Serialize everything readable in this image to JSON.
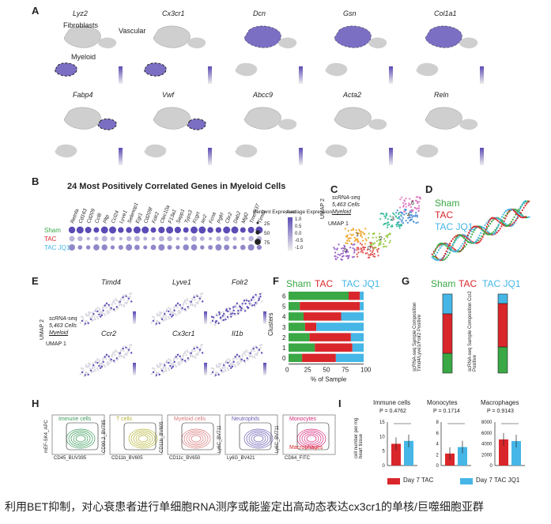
{
  "panelA": {
    "letter": "A",
    "genes": [
      "Lyz2",
      "Cx3cr1",
      "Dcn",
      "Gsn",
      "Col1a1",
      "Fabp4",
      "Vwf",
      "Abcc9",
      "Acta2",
      "Reln"
    ],
    "labels": {
      "fibroblasts": "Fibroblasts",
      "vascular": "Vascular",
      "myeloid": "Myeloid"
    }
  },
  "panelB": {
    "letter": "B",
    "title": "24 Most Positively Correlated Genes in Myeloid Cells",
    "genes": [
      "Retnla",
      "Cd163",
      "Cd209",
      "Ccl8",
      "Pltp",
      "Ccl24",
      "Lyve1",
      "Selenop1",
      "Egr1",
      "Cd209f",
      "Folr2",
      "Clec10a",
      "F13a1",
      "Sepp1",
      "Typs3",
      "Fcgrt",
      "Ier2",
      "Fcna",
      "Pgfrl",
      "Cbr2",
      "Dab2",
      "Mgl2",
      "Tmem37",
      "Timd1"
    ],
    "rows": [
      "Sham",
      "TAC",
      "TAC JQ1"
    ],
    "legend": {
      "pct_title": "Percent Expressed",
      "pct_levels": [
        "25",
        "50",
        "75"
      ],
      "avg_title": "Average Expression",
      "avg_ticks": [
        "1.0",
        "0.5",
        "0.0",
        "-0.5",
        "-1.0"
      ]
    }
  },
  "panelC": {
    "letter": "C",
    "annot": [
      "scRNA-seq",
      "5,463 Cells",
      "Myeloid"
    ],
    "axis_y": "UMAP 2",
    "axis_x": "UMAP 1",
    "clusters": [
      "0",
      "1",
      "2",
      "3",
      "4",
      "5",
      "6"
    ]
  },
  "panelD": {
    "letter": "D",
    "legend": [
      "Sham",
      "TAC",
      "TAC JQ1"
    ]
  },
  "panelE": {
    "letter": "E",
    "genes": [
      "Timd4",
      "Lyve1",
      "Folr2",
      "Ccr2",
      "Cx3cr1",
      "Il1b"
    ],
    "annot": [
      "scRNA-seq",
      "5,463 Cells",
      "Myeloid"
    ],
    "axis_y": "UMAP 2",
    "axis_x": "UMAP 1"
  },
  "panelF": {
    "letter": "F",
    "legend": [
      "Sham",
      "TAC",
      "TAC JQ1"
    ],
    "ylabel": "Clusters",
    "xlabel": "% of Sample",
    "xticks": [
      "0",
      "25",
      "50",
      "75",
      "100"
    ]
  },
  "panelG": {
    "letter": "G",
    "legend": [
      "Sham",
      "TAC",
      "TAC JQ1"
    ],
    "bar1_label": "scRNA-seq Sample Composition Timd4/Lyve1/Folr2 Positive",
    "bar2_label": "scRNA-seq Sample Composition Ccr2 Positive"
  },
  "panelH": {
    "letter": "H",
    "plots": [
      {
        "y": "mEF-SK4_APC",
        "x": "CD45_BUV395",
        "gate": "Immune cells"
      },
      {
        "y": "CD90.2_BV785",
        "x": "CD11b_BV605",
        "gate": "T cells"
      },
      {
        "y": "CD11b_BV605",
        "x": "CD11c_BV650",
        "gate": "Myeloid cells"
      },
      {
        "y": "Ly6C_BV711",
        "x": "Ly6G_BV421",
        "gate": "Neutrophils"
      },
      {
        "y": "Ly6C_BV711",
        "x": "CD64_FITC",
        "gate": "Monocytes",
        "gate2": "Macrophages"
      }
    ]
  },
  "panelI": {
    "letter": "I",
    "ylabel": "cell number per mg heart tissue",
    "plots": [
      {
        "title": "Immune cells",
        "p": "P = 0.4762",
        "yticks": [
          "0",
          "5",
          "10",
          "15"
        ]
      },
      {
        "title": "Monocytes",
        "p": "P = 0.1714",
        "yticks": [
          "0",
          "2",
          "4",
          "6",
          "8"
        ]
      },
      {
        "title": "Macrophages",
        "p": "P = 0.9143",
        "yticks": [
          "0",
          "2000",
          "4000",
          "6000",
          "8000"
        ]
      }
    ],
    "legend": [
      "Day 7 TAC",
      "Day 7 TAC JQ1"
    ]
  },
  "chart_data": [
    {
      "type": "bar",
      "title": "",
      "xlabel": "% of Sample",
      "ylabel": "Clusters",
      "categories": [
        "6",
        "5",
        "4",
        "3",
        "2",
        "1",
        "0"
      ],
      "series": [
        {
          "name": "Sham",
          "values": [
            80,
            15,
            20,
            22,
            28,
            35,
            18
          ]
        },
        {
          "name": "TAC",
          "values": [
            15,
            80,
            50,
            15,
            55,
            50,
            45
          ]
        },
        {
          "name": "TAC JQ1",
          "values": [
            5,
            5,
            30,
            63,
            17,
            15,
            37
          ]
        }
      ],
      "xlim": [
        0,
        100
      ],
      "orientation": "horizontal-stacked",
      "colors": {
        "Sham": "#3aa845",
        "TAC": "#d9262b",
        "TAC JQ1": "#45b6e6"
      }
    },
    {
      "type": "bar",
      "title": "",
      "categories": [
        "Timd4/Lyve1/Folr2 Positive",
        "Ccr2 Positive"
      ],
      "series": [
        {
          "name": "Sham",
          "values": [
            0.25,
            0.33
          ]
        },
        {
          "name": "TAC",
          "values": [
            0.5,
            0.55
          ]
        },
        {
          "name": "TAC JQ1",
          "values": [
            0.25,
            0.12
          ]
        }
      ],
      "orientation": "vertical-stacked"
    },
    {
      "type": "bar",
      "title": "Immune cells",
      "categories": [
        "Day 7 TAC",
        "Day 7 TAC JQ1"
      ],
      "values": [
        7.5,
        8.5
      ],
      "ylim": [
        0,
        15
      ]
    },
    {
      "type": "bar",
      "title": "Monocytes",
      "categories": [
        "Day 7 TAC",
        "Day 7 TAC JQ1"
      ],
      "values": [
        2.2,
        3.4
      ],
      "ylim": [
        0,
        8
      ]
    },
    {
      "type": "bar",
      "title": "Macrophages",
      "categories": [
        "Day 7 TAC",
        "Day 7 TAC JQ1"
      ],
      "values": [
        4800,
        4500
      ],
      "ylim": [
        0,
        8000
      ]
    }
  ],
  "colors": {
    "sham": "#3aa845",
    "tac": "#d9262b",
    "jq1": "#45b6e6",
    "purple": "#5a4bb5",
    "gray": "#cfcfcf"
  },
  "caption": "利用BET抑制，对心衰患者进行单细胞RNA测序或能鉴定出高动态表达cx3cr1的单核/巨噬细胞亚群"
}
